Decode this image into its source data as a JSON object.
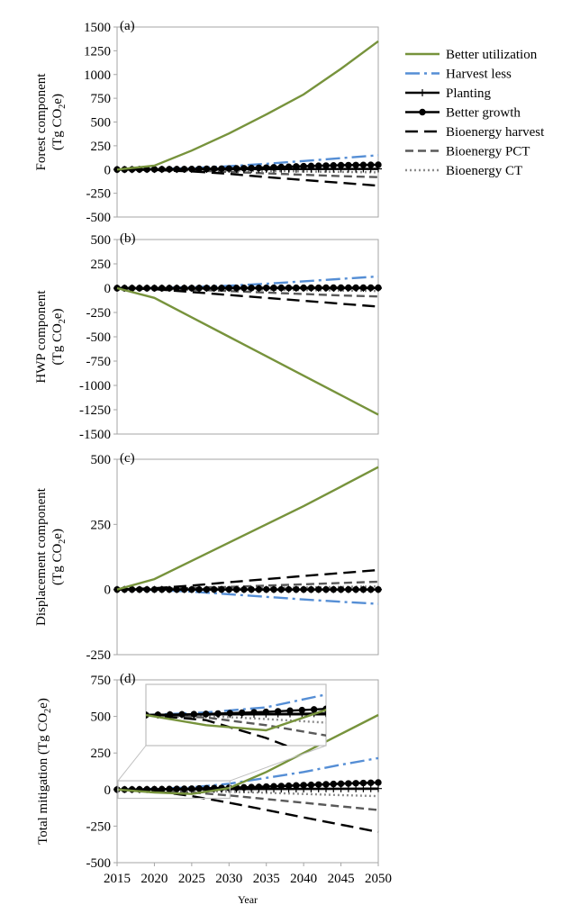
{
  "legend": {
    "entries": [
      {
        "name": "Better utilization",
        "color": "#77933c",
        "dash": "none",
        "marker": "none"
      },
      {
        "name": "Harvest less",
        "color": "#558ed5",
        "dash": "16,5,3,5",
        "marker": "none"
      },
      {
        "name": "Planting",
        "color": "#000000",
        "dash": "none",
        "marker": "plus"
      },
      {
        "name": "Better growth",
        "color": "#000000",
        "dash": "none",
        "marker": "circle"
      },
      {
        "name": "Bioenergy harvest",
        "color": "#000000",
        "dash": "14,7",
        "marker": "none"
      },
      {
        "name": "Bioenergy PCT",
        "color": "#595959",
        "dash": "9,5",
        "marker": "none"
      },
      {
        "name": "Bioenergy CT",
        "color": "#8c8c8c",
        "dash": "2,3",
        "marker": "none"
      }
    ]
  },
  "x_axis": {
    "label": "Year",
    "ticks": [
      "2015",
      "2020",
      "2025",
      "2030",
      "2035",
      "2040",
      "2045",
      "2050"
    ]
  },
  "chart_data": [
    {
      "type": "line",
      "panel_label": "(a)",
      "ylabel": "Forest component",
      "ylabel_unit": "(Tg CO",
      "ylabel_sub": "2",
      "ylabel_end": "e)",
      "ylim": [
        -500,
        1500
      ],
      "yticks": [
        "1500",
        "1250",
        "1000",
        "750",
        "500",
        "250",
        "0",
        "-250",
        "-500"
      ],
      "x": [
        2015,
        2020,
        2025,
        2030,
        2035,
        2040,
        2045,
        2050
      ],
      "series": [
        {
          "name": "Better utilization",
          "values": [
            0,
            40,
            200,
            380,
            580,
            790,
            1060,
            1350
          ]
        },
        {
          "name": "Harvest less",
          "values": [
            0,
            5,
            15,
            35,
            60,
            90,
            120,
            150
          ]
        },
        {
          "name": "Planting",
          "values": [
            0,
            1,
            2,
            3,
            4,
            5,
            6,
            7
          ]
        },
        {
          "name": "Better growth",
          "values": [
            0,
            2,
            5,
            10,
            20,
            35,
            45,
            50
          ]
        },
        {
          "name": "Bioenergy harvest",
          "values": [
            0,
            -5,
            -20,
            -45,
            -80,
            -110,
            -140,
            -170
          ]
        },
        {
          "name": "Bioenergy PCT",
          "values": [
            0,
            -2,
            -10,
            -25,
            -40,
            -55,
            -70,
            -80
          ]
        },
        {
          "name": "Bioenergy CT",
          "values": [
            0,
            -1,
            -5,
            -10,
            -15,
            -20,
            -25,
            -30
          ]
        }
      ]
    },
    {
      "type": "line",
      "panel_label": "(b)",
      "ylabel": "HWP component",
      "ylabel_unit": "(Tg CO",
      "ylabel_sub": "2",
      "ylabel_end": "e)",
      "ylim": [
        -1500,
        500
      ],
      "yticks": [
        "500",
        "250",
        "0",
        "-250",
        "-500",
        "-750",
        "-1000",
        "-1250",
        "-1500"
      ],
      "x": [
        2015,
        2020,
        2025,
        2030,
        2035,
        2040,
        2045,
        2050
      ],
      "series": [
        {
          "name": "Better utilization",
          "values": [
            0,
            -100,
            -300,
            -500,
            -700,
            -900,
            -1100,
            -1300
          ]
        },
        {
          "name": "Harvest less",
          "values": [
            0,
            2,
            10,
            25,
            45,
            70,
            95,
            120
          ]
        },
        {
          "name": "Planting",
          "values": [
            0,
            0,
            0,
            0,
            0,
            0,
            0,
            0
          ]
        },
        {
          "name": "Better growth",
          "values": [
            0,
            0,
            1,
            2,
            3,
            4,
            5,
            5
          ]
        },
        {
          "name": "Bioenergy harvest",
          "values": [
            0,
            -10,
            -40,
            -70,
            -100,
            -130,
            -160,
            -190
          ]
        },
        {
          "name": "Bioenergy PCT",
          "values": [
            0,
            -5,
            -15,
            -30,
            -45,
            -60,
            -75,
            -85
          ]
        },
        {
          "name": "Bioenergy CT",
          "values": [
            0,
            -2,
            -5,
            -10,
            -15,
            -20,
            -25,
            -30
          ]
        }
      ]
    },
    {
      "type": "line",
      "panel_label": "(c)",
      "ylabel": "Displacement component",
      "ylabel_unit": "(Tg CO",
      "ylabel_sub": "2",
      "ylabel_end": "e)",
      "ylim": [
        -250,
        500
      ],
      "yticks": [
        "500",
        "250",
        "0",
        "-250"
      ],
      "x": [
        2015,
        2020,
        2025,
        2030,
        2035,
        2040,
        2045,
        2050
      ],
      "series": [
        {
          "name": "Better utilization",
          "values": [
            0,
            40,
            110,
            180,
            250,
            320,
            395,
            470
          ]
        },
        {
          "name": "Harvest less",
          "values": [
            0,
            -2,
            -8,
            -18,
            -28,
            -38,
            -47,
            -55
          ]
        },
        {
          "name": "Planting",
          "values": [
            0,
            0,
            0,
            0,
            0,
            0,
            0,
            0
          ]
        },
        {
          "name": "Better growth",
          "values": [
            0,
            0,
            0,
            0,
            0,
            0,
            0,
            0
          ]
        },
        {
          "name": "Bioenergy harvest",
          "values": [
            0,
            5,
            15,
            28,
            40,
            52,
            63,
            75
          ]
        },
        {
          "name": "Bioenergy PCT",
          "values": [
            0,
            2,
            6,
            10,
            15,
            20,
            25,
            30
          ]
        },
        {
          "name": "Bioenergy CT",
          "values": [
            0,
            1,
            2,
            4,
            6,
            8,
            10,
            12
          ]
        }
      ]
    },
    {
      "type": "line",
      "panel_label": "(d)",
      "ylabel": "Total mitigation (Tg CO",
      "ylabel_unit": "",
      "ylabel_sub": "2",
      "ylabel_end": "e)",
      "ylim": [
        -500,
        750
      ],
      "yticks": [
        "750",
        "500",
        "250",
        "0",
        "-250",
        "-500"
      ],
      "x": [
        2015,
        2020,
        2025,
        2030,
        2035,
        2040,
        2045,
        2050
      ],
      "series": [
        {
          "name": "Better utilization",
          "values": [
            0,
            -20,
            -30,
            10,
            120,
            250,
            380,
            510
          ]
        },
        {
          "name": "Harvest less",
          "values": [
            0,
            5,
            15,
            40,
            80,
            120,
            170,
            215
          ]
        },
        {
          "name": "Planting",
          "values": [
            0,
            1,
            2,
            3,
            4,
            5,
            6,
            7
          ]
        },
        {
          "name": "Better growth",
          "values": [
            0,
            2,
            6,
            12,
            20,
            30,
            40,
            48
          ]
        },
        {
          "name": "Bioenergy harvest",
          "values": [
            0,
            -10,
            -45,
            -90,
            -140,
            -190,
            -240,
            -290
          ]
        },
        {
          "name": "Bioenergy PCT",
          "values": [
            0,
            -5,
            -20,
            -40,
            -65,
            -90,
            -115,
            -140
          ]
        },
        {
          "name": "Bioenergy CT",
          "values": [
            0,
            -2,
            -8,
            -15,
            -22,
            -30,
            -38,
            -45
          ]
        }
      ]
    }
  ]
}
